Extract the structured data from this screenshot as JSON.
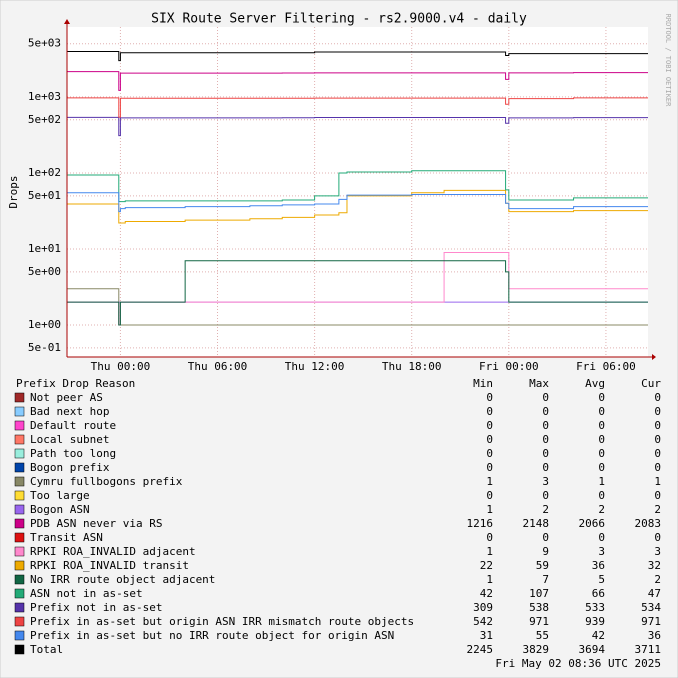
{
  "chart_data": {
    "type": "line",
    "title": "SIX Route Server Filtering - rs2.9000.v4 - daily",
    "y_label": "Drops",
    "watermark": "RRDTOOL / TOBI OETIKER",
    "log_scale": true,
    "grid": true,
    "x": [
      -3.3,
      -0.1,
      0,
      0.3,
      4,
      8,
      10,
      12,
      13.5,
      14,
      18,
      20,
      23.8,
      24,
      24.2,
      28,
      32.6
    ],
    "xlim": [
      -3.3,
      32.6
    ],
    "xticks": [
      {
        "value": 0,
        "label": "Thu 00:00"
      },
      {
        "value": 6,
        "label": "Thu 06:00"
      },
      {
        "value": 12,
        "label": "Thu 12:00"
      },
      {
        "value": 18,
        "label": "Thu 18:00"
      },
      {
        "value": 24,
        "label": "Fri 00:00"
      },
      {
        "value": 30,
        "label": "Fri 06:00"
      }
    ],
    "ylim": [
      0.38,
      8300
    ],
    "yticks": [
      {
        "value": 0.5,
        "label": "5e-01"
      },
      {
        "value": 1,
        "label": "1e+00"
      },
      {
        "value": 5,
        "label": "5e+00"
      },
      {
        "value": 10,
        "label": "1e+01"
      },
      {
        "value": 50,
        "label": "5e+01"
      },
      {
        "value": 100,
        "label": "1e+02"
      },
      {
        "value": 500,
        "label": "5e+02"
      },
      {
        "value": 1000,
        "label": "1e+03"
      },
      {
        "value": 5000,
        "label": "5e+03"
      }
    ],
    "legend_columns": [
      "Prefix Drop Reason",
      "Min",
      "Max",
      "Avg",
      "Cur"
    ],
    "footer": "Fri May 02 08:36 UTC 2025",
    "series": [
      {
        "name": "Not peer AS",
        "color": "#a02828",
        "stats": [
          0,
          0,
          0,
          0
        ]
      },
      {
        "name": "Bad next hop",
        "color": "#88ccff",
        "stats": [
          0,
          0,
          0,
          0
        ]
      },
      {
        "name": "Default route",
        "color": "#ff44cc",
        "stats": [
          0,
          0,
          0,
          0
        ]
      },
      {
        "name": "Local subnet",
        "color": "#ff7766",
        "stats": [
          0,
          0,
          0,
          0
        ]
      },
      {
        "name": "Path too long",
        "color": "#99eedd",
        "stats": [
          0,
          0,
          0,
          0
        ]
      },
      {
        "name": "Bogon prefix",
        "color": "#0044aa",
        "stats": [
          0,
          0,
          0,
          0
        ]
      },
      {
        "name": "Cymru fullbogons prefix",
        "color": "#888866",
        "stats": [
          1,
          3,
          1,
          1
        ],
        "values": [
          3,
          1,
          1,
          1,
          1,
          1,
          1,
          1,
          1,
          1,
          1,
          1,
          1,
          1,
          1,
          1,
          1
        ]
      },
      {
        "name": "Too large",
        "color": "#ffdd33",
        "stats": [
          0,
          0,
          0,
          0
        ]
      },
      {
        "name": "Bogon ASN",
        "color": "#9966ee",
        "stats": [
          1,
          2,
          2,
          2
        ],
        "values": [
          2,
          2,
          2,
          2,
          2,
          2,
          2,
          2,
          2,
          2,
          2,
          2,
          2,
          2,
          2,
          2,
          2
        ]
      },
      {
        "name": "PDB ASN never via RS",
        "color": "#cc0088",
        "stats": [
          1216,
          2148,
          2066,
          2083
        ],
        "values": [
          2148,
          1216,
          2050,
          2050,
          2050,
          2050,
          2060,
          2070,
          2070,
          2070,
          2070,
          2070,
          1700,
          2066,
          2066,
          2083,
          2083
        ]
      },
      {
        "name": "Transit ASN",
        "color": "#dd1111",
        "stats": [
          0,
          0,
          0,
          0
        ]
      },
      {
        "name": "RPKI ROA_INVALID adjacent",
        "color": "#ff88cc",
        "stats": [
          1,
          9,
          3,
          3
        ],
        "values": [
          2,
          1,
          2,
          2,
          2,
          2,
          2,
          2,
          2,
          2,
          2,
          9,
          9,
          3,
          3,
          3,
          3
        ]
      },
      {
        "name": "RPKI ROA_INVALID transit",
        "color": "#eeaa00",
        "stats": [
          22,
          59,
          36,
          32
        ],
        "values": [
          39,
          22,
          22,
          23,
          24,
          25,
          26,
          28,
          30,
          50,
          55,
          59,
          40,
          31,
          31,
          32,
          32
        ]
      },
      {
        "name": "No IRR route object adjacent",
        "color": "#116644",
        "stats": [
          1,
          7,
          5,
          2
        ],
        "values": [
          2,
          1,
          2,
          2,
          7,
          7,
          7,
          7,
          7,
          7,
          7,
          7,
          5,
          2,
          2,
          2,
          2
        ]
      },
      {
        "name": "ASN not in as-set",
        "color": "#22aa77",
        "stats": [
          42,
          107,
          66,
          47
        ],
        "values": [
          94,
          42,
          42,
          43,
          43,
          43,
          44,
          50,
          100,
          103,
          107,
          107,
          60,
          44,
          44,
          47,
          47
        ]
      },
      {
        "name": "Prefix not in as-set",
        "color": "#5533aa",
        "stats": [
          309,
          538,
          533,
          534
        ],
        "values": [
          538,
          309,
          530,
          530,
          530,
          530,
          532,
          535,
          535,
          535,
          535,
          535,
          450,
          530,
          530,
          534,
          534
        ]
      },
      {
        "name": "Prefix in as-set but origin ASN IRR mismatch route objects",
        "color": "#ee4444",
        "stats": [
          542,
          971,
          939,
          971
        ],
        "values": [
          971,
          542,
          960,
          960,
          960,
          960,
          960,
          965,
          965,
          965,
          965,
          965,
          800,
          950,
          950,
          971,
          971
        ]
      },
      {
        "name": "Prefix in as-set but no IRR route object for origin ASN",
        "color": "#4488ee",
        "stats": [
          31,
          55,
          42,
          36
        ],
        "values": [
          55,
          31,
          34,
          35,
          36,
          37,
          38,
          39,
          45,
          51,
          52,
          52,
          40,
          34,
          34,
          36,
          36
        ]
      },
      {
        "name": "Total",
        "color": "#000000",
        "stats": [
          2245,
          3829,
          3694,
          3711
        ],
        "values": [
          3950,
          3000,
          3800,
          3800,
          3800,
          3800,
          3800,
          3900,
          3900,
          3900,
          3900,
          3900,
          3500,
          3700,
          3700,
          3711,
          3711
        ]
      }
    ]
  }
}
